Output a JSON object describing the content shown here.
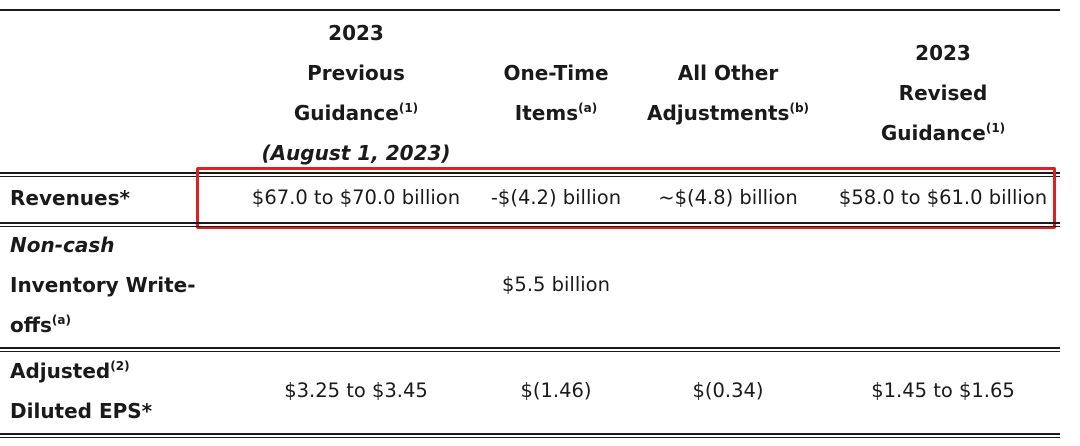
{
  "headers": {
    "col1": {
      "line1": "2023",
      "line2": "Previous",
      "line3": "Guidance",
      "sup": "(1)",
      "line4": "(August 1, 2023)"
    },
    "col2": {
      "line1": "One-Time",
      "line2": "Items",
      "sup": "(a)"
    },
    "col3": {
      "line1": "All Other",
      "line2": "Adjustments",
      "sup": "(b)"
    },
    "col4": {
      "line1": "2023",
      "line2": "Revised",
      "line3": "Guidance",
      "sup": "(1)"
    }
  },
  "rows": {
    "revenues": {
      "label": "Revenues*",
      "col1": "$67.0 to $70.0 billion",
      "col2": "-$(4.2) billion",
      "col3": "~$(4.8) billion",
      "col4": "$58.0 to $61.0 billion"
    },
    "inventory": {
      "label_line1": "Non-cash",
      "label_line2": "Inventory Write-",
      "label_line3": "offs",
      "label_sup": "(a)",
      "col2": "$5.5 billion"
    },
    "eps": {
      "label_line1": "Adjusted",
      "label_sup": "(2)",
      "label_line2": "Diluted EPS*",
      "col1": "$3.25 to $3.45",
      "col2": "$(1.46)",
      "col3": "$(0.34)",
      "col4": "$1.45 to $1.65"
    }
  },
  "colors": {
    "highlight": "#e02020",
    "rule": "#1a1a1a"
  }
}
